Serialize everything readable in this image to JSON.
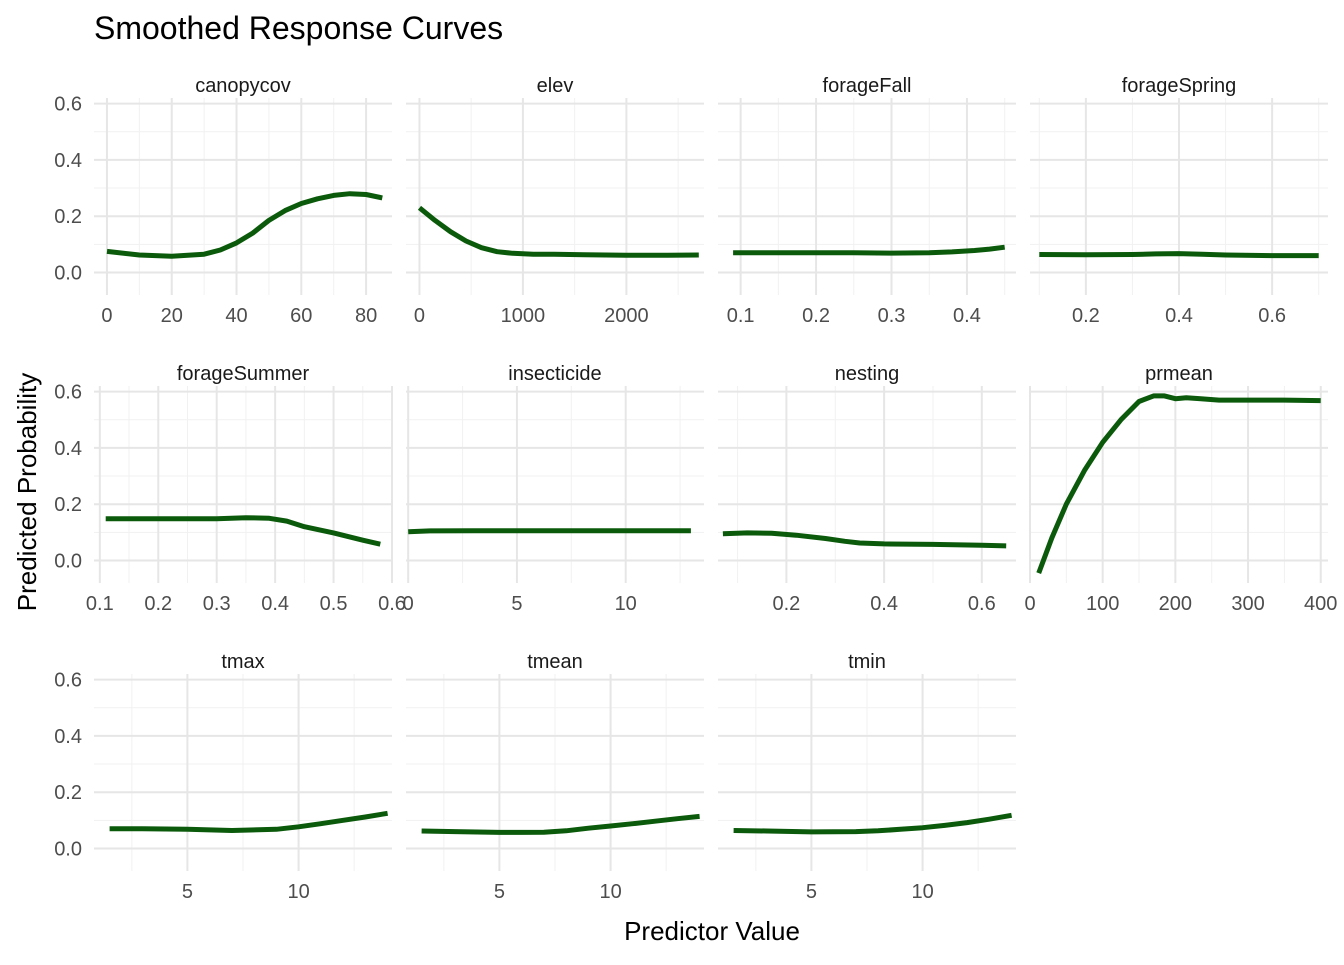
{
  "chart_data": {
    "type": "line",
    "title": "Smoothed Response Curves",
    "xlabel": "Predictor Value",
    "ylabel": "Predicted Probability",
    "ylim": [
      -0.08,
      0.62
    ],
    "y_ticks": [
      0.0,
      0.2,
      0.4,
      0.6
    ],
    "y_tick_labels": [
      "0.0",
      "0.2",
      "0.4",
      "0.6"
    ],
    "grid": true,
    "line_color": "#0b5a0b",
    "facets": [
      {
        "name": "canopycov",
        "xlim": [
          -4,
          88
        ],
        "x_ticks": [
          0,
          20,
          40,
          60,
          80
        ],
        "x_tick_labels": [
          "0",
          "20",
          "40",
          "60",
          "80"
        ],
        "x": [
          0,
          10,
          20,
          30,
          35,
          40,
          45,
          50,
          55,
          60,
          65,
          70,
          75,
          80,
          85
        ],
        "y": [
          0.075,
          0.062,
          0.058,
          0.065,
          0.08,
          0.105,
          0.14,
          0.185,
          0.22,
          0.245,
          0.262,
          0.274,
          0.28,
          0.277,
          0.265
        ]
      },
      {
        "name": "elev",
        "xlim": [
          -130,
          2750
        ],
        "x_ticks": [
          0,
          1000,
          2000
        ],
        "x_tick_labels": [
          "0",
          "1000",
          "2000"
        ],
        "x": [
          0,
          150,
          300,
          450,
          600,
          750,
          900,
          1100,
          1300,
          1600,
          2000,
          2400,
          2700
        ],
        "y": [
          0.23,
          0.185,
          0.145,
          0.112,
          0.088,
          0.074,
          0.068,
          0.065,
          0.065,
          0.063,
          0.061,
          0.061,
          0.062
        ]
      },
      {
        "name": "forageFall",
        "xlim": [
          0.07,
          0.465
        ],
        "x_ticks": [
          0.1,
          0.2,
          0.3,
          0.4
        ],
        "x_tick_labels": [
          "0.1",
          "0.2",
          "0.3",
          "0.4"
        ],
        "x": [
          0.09,
          0.15,
          0.2,
          0.25,
          0.3,
          0.35,
          0.38,
          0.41,
          0.43,
          0.45
        ],
        "y": [
          0.07,
          0.07,
          0.07,
          0.07,
          0.069,
          0.07,
          0.073,
          0.078,
          0.083,
          0.09
        ]
      },
      {
        "name": "forageSpring",
        "xlim": [
          0.08,
          0.72
        ],
        "x_ticks": [
          0.2,
          0.4,
          0.6
        ],
        "x_tick_labels": [
          "0.2",
          "0.4",
          "0.6"
        ],
        "x": [
          0.1,
          0.2,
          0.3,
          0.35,
          0.4,
          0.45,
          0.5,
          0.6,
          0.7
        ],
        "y": [
          0.064,
          0.063,
          0.064,
          0.066,
          0.067,
          0.065,
          0.062,
          0.06,
          0.06
        ]
      },
      {
        "name": "forageSummer",
        "xlim": [
          0.09,
          0.6
        ],
        "x_ticks": [
          0.1,
          0.2,
          0.3,
          0.4,
          0.5,
          0.6
        ],
        "x_tick_labels": [
          "0.1",
          "0.2",
          "0.3",
          "0.4",
          "0.5",
          "0.6"
        ],
        "x": [
          0.11,
          0.2,
          0.3,
          0.35,
          0.39,
          0.42,
          0.45,
          0.5,
          0.55,
          0.58
        ],
        "y": [
          0.148,
          0.148,
          0.148,
          0.152,
          0.15,
          0.14,
          0.12,
          0.098,
          0.072,
          0.058
        ]
      },
      {
        "name": "insecticide",
        "xlim": [
          -0.1,
          13.6
        ],
        "x_ticks": [
          0,
          5,
          10
        ],
        "x_tick_labels": [
          "0",
          "5",
          "10"
        ],
        "x": [
          0,
          1,
          3,
          5,
          8,
          10,
          13
        ],
        "y": [
          0.102,
          0.105,
          0.106,
          0.106,
          0.106,
          0.106,
          0.106
        ]
      },
      {
        "name": "nesting",
        "xlim": [
          0.06,
          0.67
        ],
        "x_ticks": [
          0.2,
          0.4,
          0.6
        ],
        "x_tick_labels": [
          "0.2",
          "0.4",
          "0.6"
        ],
        "x": [
          0.07,
          0.12,
          0.17,
          0.22,
          0.28,
          0.32,
          0.35,
          0.4,
          0.5,
          0.6,
          0.65
        ],
        "y": [
          0.095,
          0.098,
          0.097,
          0.09,
          0.078,
          0.068,
          0.062,
          0.059,
          0.057,
          0.054,
          0.052
        ]
      },
      {
        "name": "prmean",
        "xlim": [
          0,
          410
        ],
        "x_ticks": [
          0,
          100,
          200,
          300,
          400
        ],
        "x_tick_labels": [
          "0",
          "100",
          "200",
          "300",
          "400"
        ],
        "x": [
          12,
          30,
          50,
          75,
          100,
          125,
          150,
          170,
          185,
          200,
          215,
          235,
          260,
          300,
          350,
          400
        ],
        "y": [
          -0.045,
          0.08,
          0.2,
          0.32,
          0.42,
          0.5,
          0.565,
          0.585,
          0.585,
          0.575,
          0.578,
          0.575,
          0.57,
          0.57,
          0.57,
          0.568
        ]
      },
      {
        "name": "tmax",
        "xlim": [
          0.8,
          14.2
        ],
        "x_ticks": [
          5,
          10
        ],
        "x_tick_labels": [
          "5",
          "10"
        ],
        "x": [
          1.5,
          3,
          5,
          7,
          9,
          10,
          11,
          12,
          13,
          14
        ],
        "y": [
          0.07,
          0.07,
          0.068,
          0.064,
          0.068,
          0.077,
          0.088,
          0.1,
          0.112,
          0.125
        ]
      },
      {
        "name": "tmean",
        "xlim": [
          0.8,
          14.2
        ],
        "x_ticks": [
          5,
          10
        ],
        "x_tick_labels": [
          "5",
          "10"
        ],
        "x": [
          1.5,
          3,
          5,
          6,
          7,
          8,
          9,
          10,
          11,
          12,
          13,
          14
        ],
        "y": [
          0.062,
          0.06,
          0.057,
          0.057,
          0.058,
          0.063,
          0.072,
          0.08,
          0.088,
          0.097,
          0.106,
          0.114
        ]
      },
      {
        "name": "tmin",
        "xlim": [
          0.8,
          14.2
        ],
        "x_ticks": [
          5,
          10
        ],
        "x_tick_labels": [
          "5",
          "10"
        ],
        "x": [
          1.5,
          3,
          5,
          7,
          8,
          9,
          10,
          11,
          12,
          13,
          14
        ],
        "y": [
          0.064,
          0.062,
          0.059,
          0.06,
          0.063,
          0.068,
          0.074,
          0.082,
          0.092,
          0.104,
          0.118
        ]
      }
    ]
  }
}
